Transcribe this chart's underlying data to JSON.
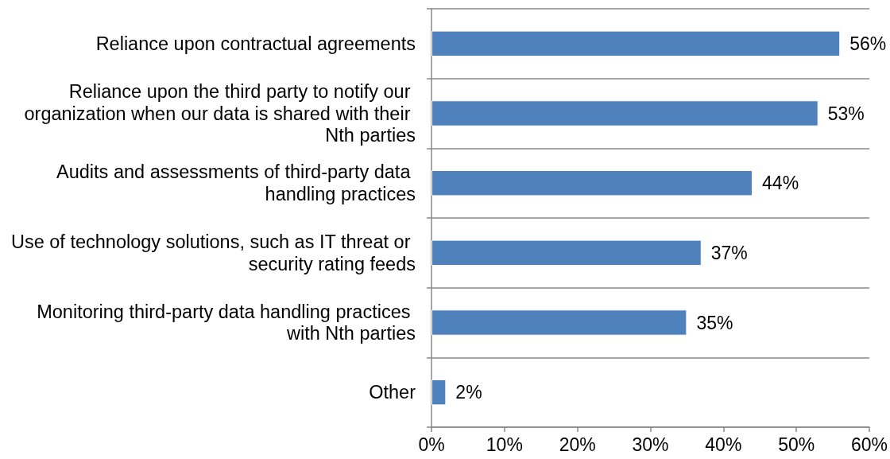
{
  "chart_data": {
    "type": "bar",
    "orientation": "horizontal",
    "categories": [
      "Reliance upon contractual agreements",
      "Reliance upon the third party to notify our organization when our data is shared with their Nth parties",
      "Audits and assessments of third-party data handling practices",
      "Use of technology solutions, such as IT threat or security rating feeds",
      "Monitoring third-party data handling practices with Nth parties",
      "Other"
    ],
    "values": [
      56,
      53,
      44,
      37,
      35,
      2
    ],
    "value_labels": [
      "56%",
      "53%",
      "44%",
      "37%",
      "35%",
      "2%"
    ],
    "color": "#4f81bd",
    "xlim": [
      0,
      60
    ],
    "xticks": [
      {
        "value": 0,
        "label": "0%"
      },
      {
        "value": 10,
        "label": "10%"
      },
      {
        "value": 20,
        "label": "20%"
      },
      {
        "value": 30,
        "label": "30%"
      },
      {
        "value": 40,
        "label": "40%"
      },
      {
        "value": 50,
        "label": "50%"
      },
      {
        "value": 60,
        "label": "60%"
      }
    ],
    "grid": "y"
  }
}
